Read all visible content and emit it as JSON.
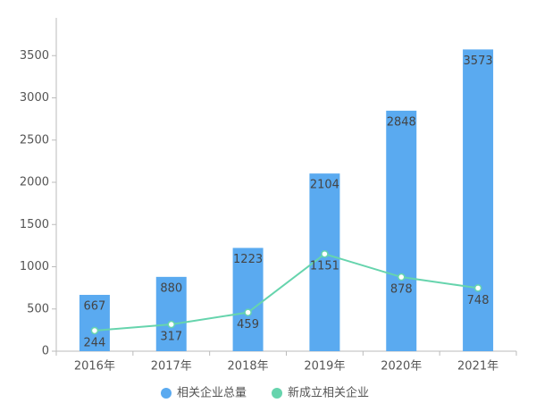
{
  "chart_data": {
    "type": "bar",
    "categories": [
      "2016年",
      "2017年",
      "2018年",
      "2019年",
      "2020年",
      "2021年"
    ],
    "series": [
      {
        "name": "相关企业总量",
        "type": "bar",
        "color": "#5aaaf0",
        "values": [
          667,
          880,
          1223,
          2104,
          2848,
          3573
        ]
      },
      {
        "name": "新成立相关企业",
        "type": "line",
        "color": "#66d4ad",
        "values": [
          244,
          317,
          459,
          1151,
          878,
          748
        ]
      }
    ],
    "ylim": [
      0,
      4000
    ],
    "yticks": [
      0,
      500,
      1000,
      1500,
      2000,
      2500,
      3000,
      3500
    ],
    "legend": "bottom"
  }
}
